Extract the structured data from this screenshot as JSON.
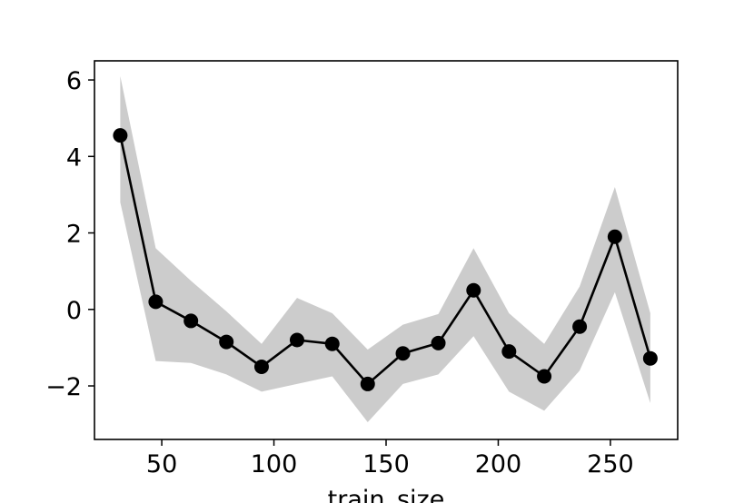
{
  "chart_data": {
    "type": "line",
    "title": "",
    "xlabel": "train_size",
    "ylabel": "",
    "xlim": [
      20,
      280
    ],
    "ylim": [
      -3.4,
      6.5
    ],
    "xticks": [
      50,
      100,
      150,
      200,
      250
    ],
    "yticks": [
      -2,
      0,
      2,
      4,
      6
    ],
    "xtick_labels": [
      "50",
      "100",
      "150",
      "200",
      "250"
    ],
    "ytick_labels": [
      "−2",
      "0",
      "2",
      "4",
      "6"
    ],
    "grid": false,
    "series": [
      {
        "x": [
          31.5,
          47.3,
          63.0,
          78.8,
          94.5,
          110.3,
          126.0,
          141.8,
          157.5,
          173.3,
          189.0,
          204.8,
          220.5,
          236.3,
          252.0,
          267.8
        ],
        "y": [
          4.55,
          0.2,
          -0.3,
          -0.85,
          -1.5,
          -0.8,
          -0.9,
          -1.95,
          -1.15,
          -0.88,
          0.5,
          -1.1,
          -1.75,
          -0.45,
          1.9,
          -1.28
        ],
        "lower": [
          2.8,
          -1.35,
          -1.4,
          -1.7,
          -2.15,
          -1.95,
          -1.75,
          -2.95,
          -1.95,
          -1.7,
          -0.7,
          -2.15,
          -2.65,
          -1.6,
          0.45,
          -2.45
        ],
        "upper": [
          6.1,
          1.6,
          0.75,
          -0.05,
          -0.9,
          0.3,
          -0.1,
          -1.05,
          -0.4,
          -0.12,
          1.6,
          -0.1,
          -0.9,
          0.6,
          3.2,
          -0.1
        ],
        "color": "#000000",
        "band_color": "#cccccc"
      }
    ]
  }
}
